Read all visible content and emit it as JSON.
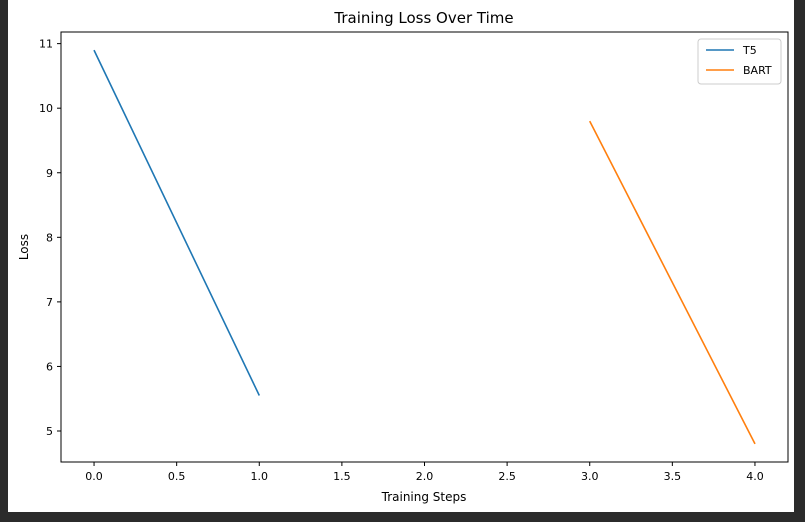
{
  "chart_data": {
    "type": "line",
    "title": "Training Loss Over Time",
    "xlabel": "Training Steps",
    "ylabel": "Loss",
    "xlim": [
      -0.2,
      4.2
    ],
    "ylim": [
      4.52,
      11.18
    ],
    "xticks": [
      0.0,
      0.5,
      1.0,
      1.5,
      2.0,
      2.5,
      3.0,
      3.5,
      4.0
    ],
    "xtick_labels": [
      "0.0",
      "0.5",
      "1.0",
      "1.5",
      "2.0",
      "2.5",
      "3.0",
      "3.5",
      "4.0"
    ],
    "yticks": [
      5,
      6,
      7,
      8,
      9,
      10,
      11
    ],
    "ytick_labels": [
      "5",
      "6",
      "7",
      "8",
      "9",
      "10",
      "11"
    ],
    "grid": false,
    "legend_position": "top-right",
    "series": [
      {
        "name": "T5",
        "color": "#1f77b4",
        "x": [
          0,
          1
        ],
        "y": [
          10.9,
          5.55
        ]
      },
      {
        "name": "BART",
        "color": "#ff7f0e",
        "x": [
          3,
          4
        ],
        "y": [
          9.8,
          4.8
        ]
      }
    ]
  }
}
